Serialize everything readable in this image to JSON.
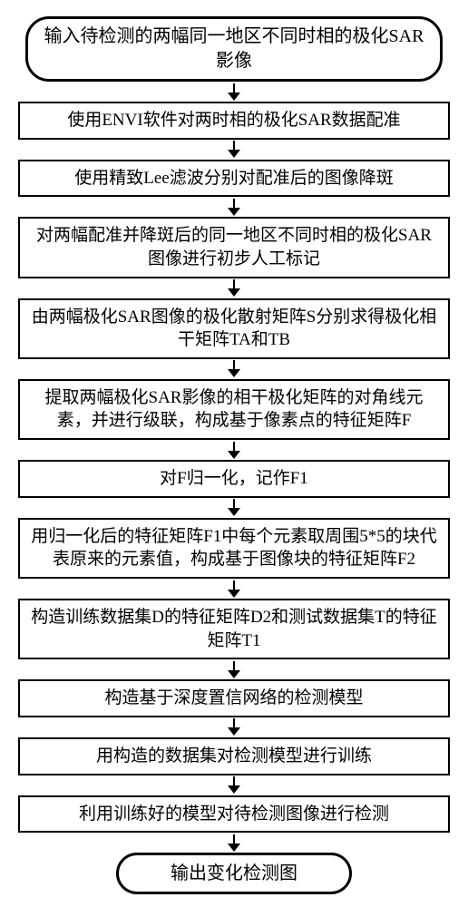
{
  "flowchart": {
    "type": "flowchart",
    "background_color": "#ffffff",
    "box_border_color": "#000000",
    "arrow_color": "#000000",
    "font_family": "SimSun",
    "nodes": [
      {
        "kind": "terminal",
        "label": "输入待检测的两幅同一地区不同时相的极化SAR影像"
      },
      {
        "kind": "process",
        "label": "使用ENVI软件对两时相的极化SAR数据配准"
      },
      {
        "kind": "process",
        "label": "使用精致Lee滤波分别对配准后的图像降斑"
      },
      {
        "kind": "process",
        "label": "对两幅配准并降斑后的同一地区不同时相的极化SAR图像进行初步人工标记",
        "lines": 2
      },
      {
        "kind": "process",
        "label": "由两幅极化SAR图像的极化散射矩阵S分别求得极化相干矩阵TA和TB",
        "lines": 2
      },
      {
        "kind": "process",
        "label": "提取两幅极化SAR影像的相干极化矩阵的对角线元素，并进行级联，构成基于像素点的特征矩阵F",
        "lines": 2
      },
      {
        "kind": "process",
        "label": "对F归一化，记作F1"
      },
      {
        "kind": "process",
        "label": "用归一化后的特征矩阵F1中每个元素取周围5*5的块代表原来的元素值，构成基于图像块的特征矩阵F2",
        "lines": 2
      },
      {
        "kind": "process",
        "label": "构造训练数据集D的特征矩阵D2和测试数据集T的特征矩阵T1",
        "lines": 2
      },
      {
        "kind": "process",
        "label": "构造基于深度置信网络的检测模型"
      },
      {
        "kind": "process",
        "label": "用构造的数据集对检测模型进行训练"
      },
      {
        "kind": "process",
        "label": "利用训练好的模型对待检测图像进行检测"
      },
      {
        "kind": "terminal",
        "label": "输出变化检测图",
        "variant": "bottom"
      }
    ],
    "arrow": {
      "line_width": 2,
      "head_width": 14,
      "head_height": 9,
      "shaft_height": 10
    }
  }
}
